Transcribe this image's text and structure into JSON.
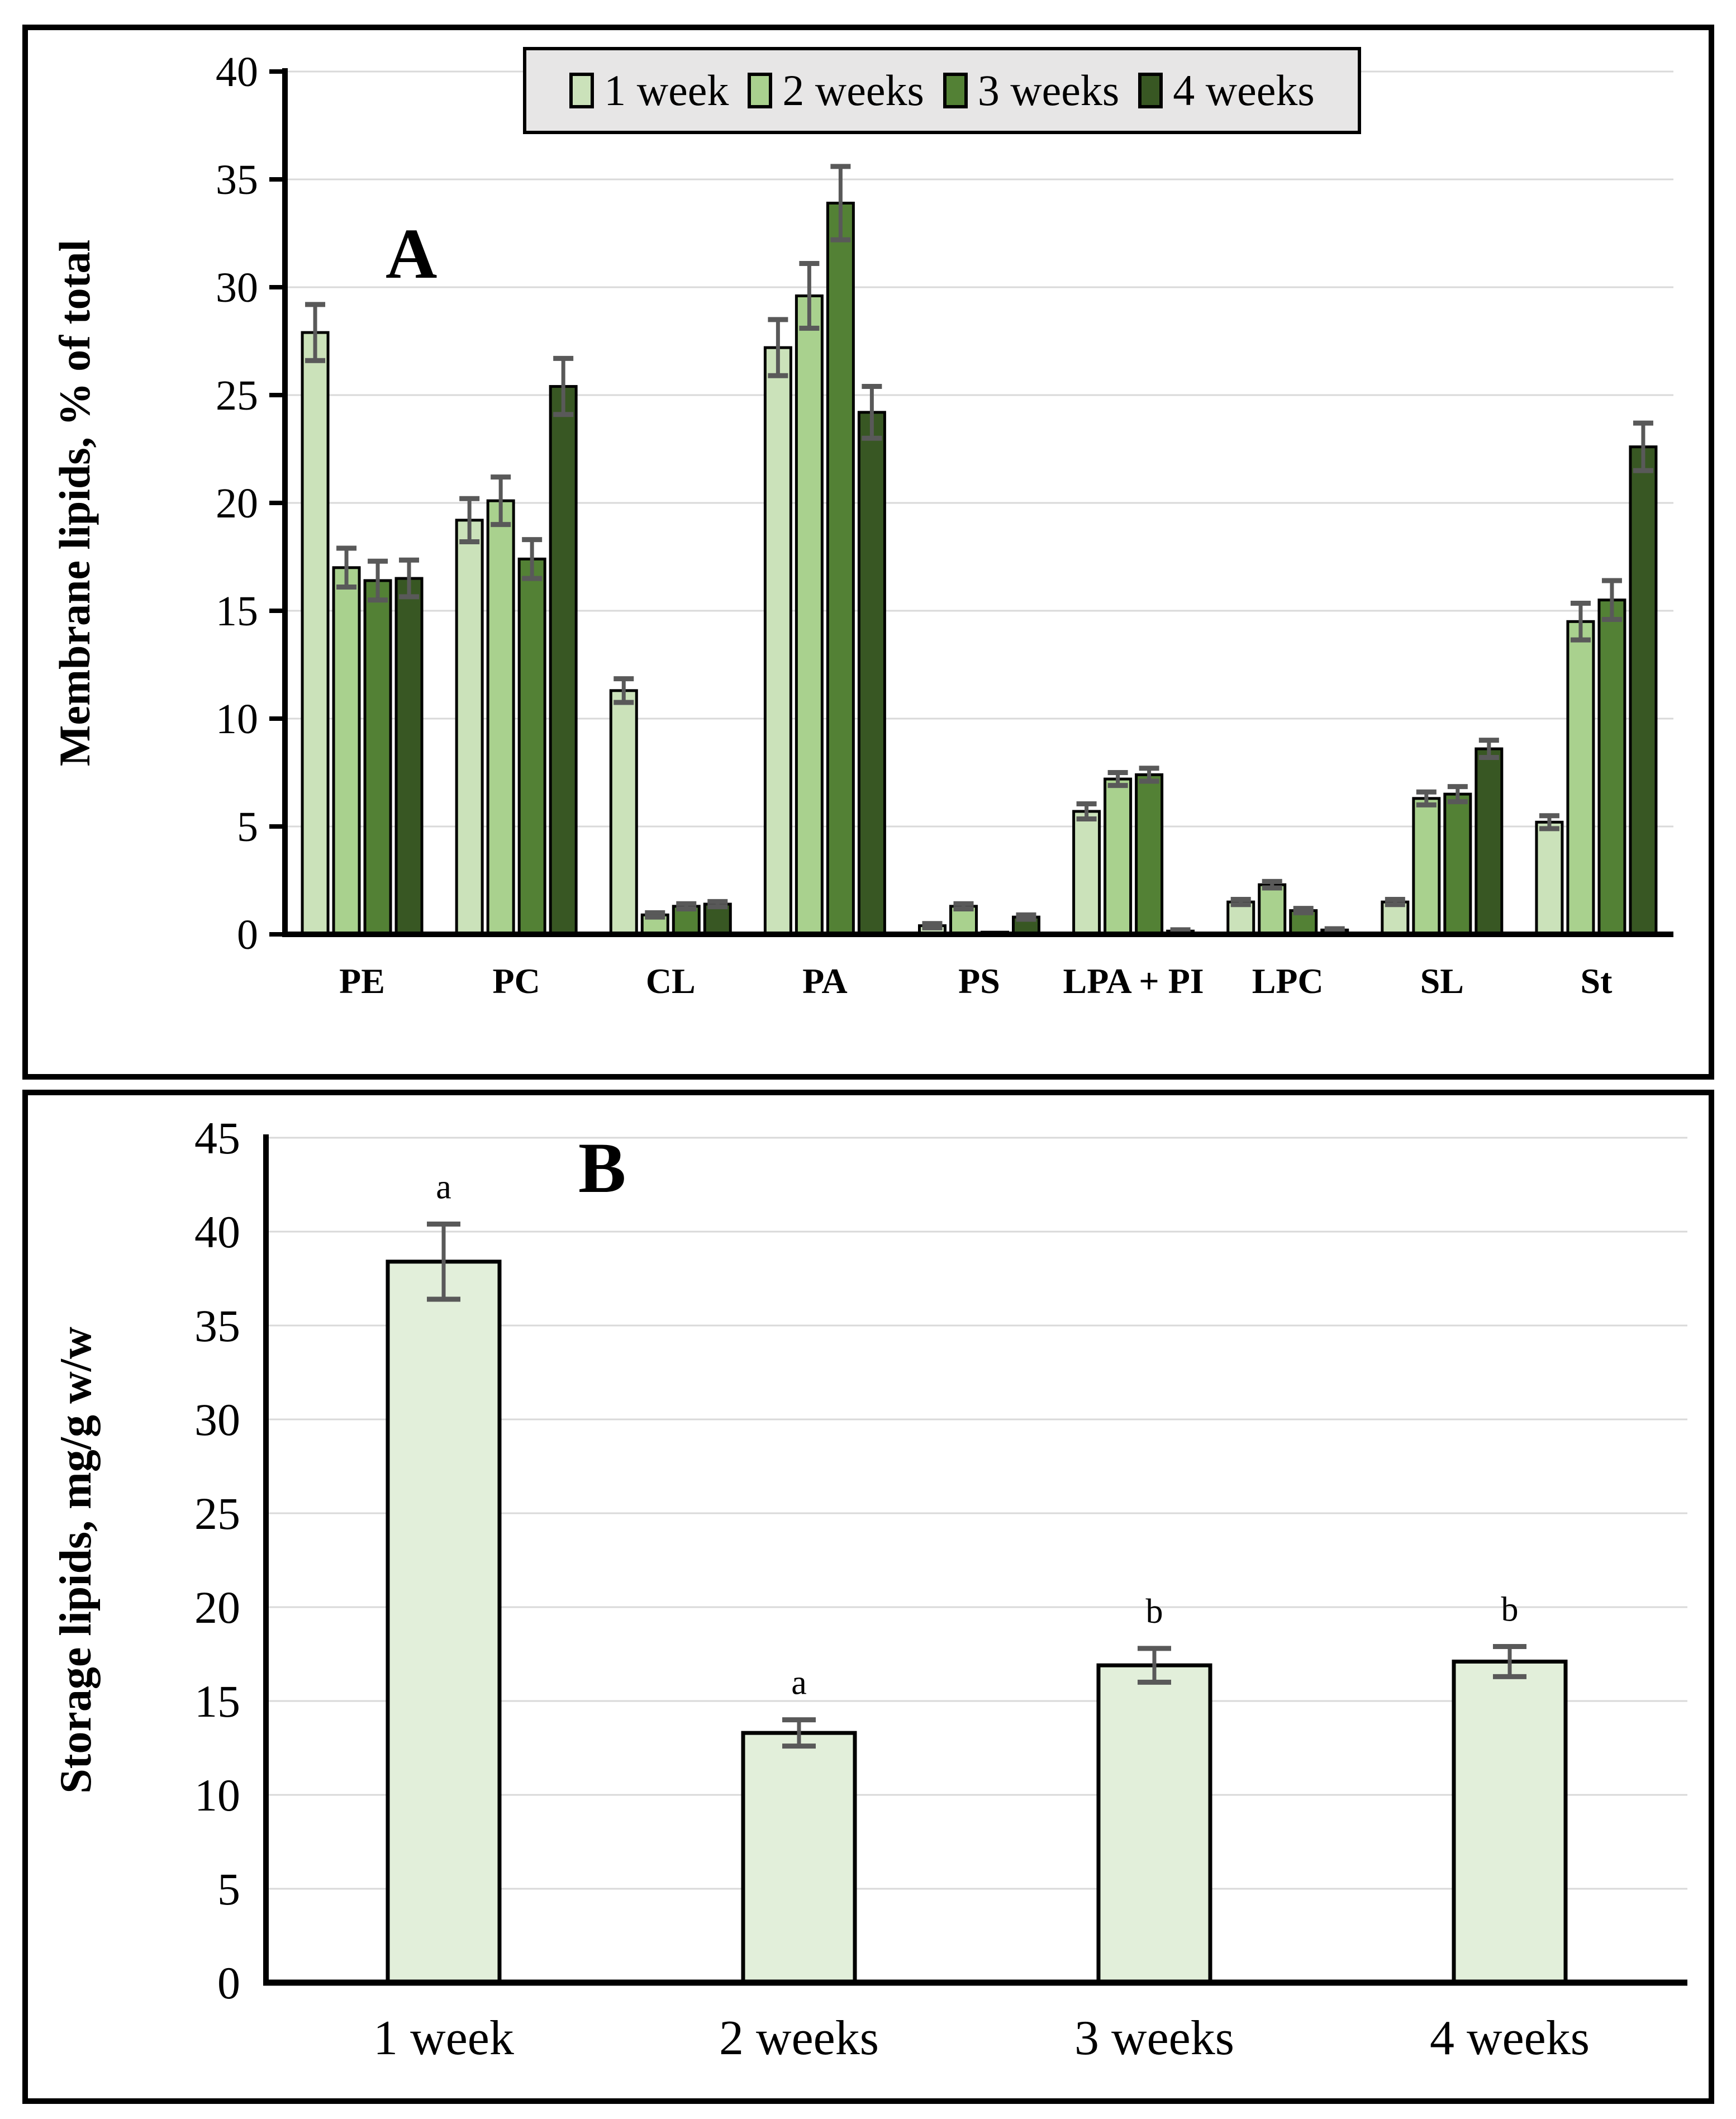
{
  "style": {
    "gridline_color": "#d9d9d9",
    "axis_color": "#000000",
    "error_bar_color": "#595959",
    "legend_background": "#e7e6e6",
    "series_colors": [
      "#cbe2ba",
      "#a9d18e",
      "#538135",
      "#385723"
    ],
    "storage_bar_color": "#e2efda"
  },
  "panel_a": {
    "label": "A",
    "y_axis_title": "Membrane lipids, % of total",
    "legend": [
      {
        "label": "1 week",
        "color": "#cbe2ba"
      },
      {
        "label": "2 weeks",
        "color": "#a9d18e"
      },
      {
        "label": "3 weeks",
        "color": "#538135"
      },
      {
        "label": "4 weeks",
        "color": "#385723"
      }
    ]
  },
  "panel_b": {
    "label": "B",
    "y_axis_title": "Storage lipids, mg/g w/w"
  },
  "chart_data": [
    {
      "type": "bar",
      "panel": "A",
      "title": "A",
      "ylabel": "Membrane lipids, % of total",
      "xlabel": "",
      "ylim": [
        0,
        40
      ],
      "yticks": [
        0,
        5,
        10,
        15,
        20,
        25,
        30,
        35,
        40
      ],
      "grid": true,
      "legend_position": "top-center",
      "categories": [
        "PE",
        "PC",
        "CL",
        "PA",
        "PS",
        "LPA + PI",
        "LPC",
        "SL",
        "St"
      ],
      "series": [
        {
          "name": "1 week",
          "color": "#cbe2ba",
          "values": [
            27.9,
            19.2,
            11.3,
            27.2,
            0.4,
            5.7,
            1.5,
            1.5,
            5.2
          ],
          "errors": [
            1.3,
            1.0,
            0.55,
            1.3,
            0.1,
            0.35,
            0.12,
            0.12,
            0.3
          ]
        },
        {
          "name": "2 weeks",
          "color": "#a9d18e",
          "values": [
            17.0,
            20.1,
            0.9,
            29.6,
            1.3,
            7.2,
            2.3,
            6.3,
            14.5
          ],
          "errors": [
            0.9,
            1.1,
            0.1,
            1.5,
            0.12,
            0.3,
            0.15,
            0.3,
            0.85
          ]
        },
        {
          "name": "3 weeks",
          "color": "#538135",
          "values": [
            16.4,
            17.4,
            1.3,
            33.9,
            0.1,
            7.4,
            1.1,
            6.5,
            15.5
          ],
          "errors": [
            0.9,
            0.9,
            0.12,
            1.7,
            0.0,
            0.3,
            0.1,
            0.35,
            0.9
          ]
        },
        {
          "name": "4 weeks",
          "color": "#385723",
          "values": [
            16.5,
            25.4,
            1.4,
            24.2,
            0.8,
            0.15,
            0.2,
            8.6,
            22.6
          ],
          "errors": [
            0.85,
            1.3,
            0.12,
            1.2,
            0.1,
            0.06,
            0.06,
            0.4,
            1.1
          ]
        }
      ]
    },
    {
      "type": "bar",
      "panel": "B",
      "title": "B",
      "ylabel": "Storage lipids, mg/g w/w",
      "xlabel": "",
      "ylim": [
        0,
        45
      ],
      "yticks": [
        0,
        5,
        10,
        15,
        20,
        25,
        30,
        35,
        40,
        45
      ],
      "grid": true,
      "categories": [
        "1 week",
        "2 weeks",
        "3 weeks",
        "4 weeks"
      ],
      "values": [
        38.4,
        13.3,
        16.9,
        17.1
      ],
      "errors": [
        2.0,
        0.7,
        0.9,
        0.8
      ],
      "sig_letters": [
        "a",
        "a",
        "b",
        "b"
      ],
      "bar_color": "#e2efda"
    }
  ]
}
